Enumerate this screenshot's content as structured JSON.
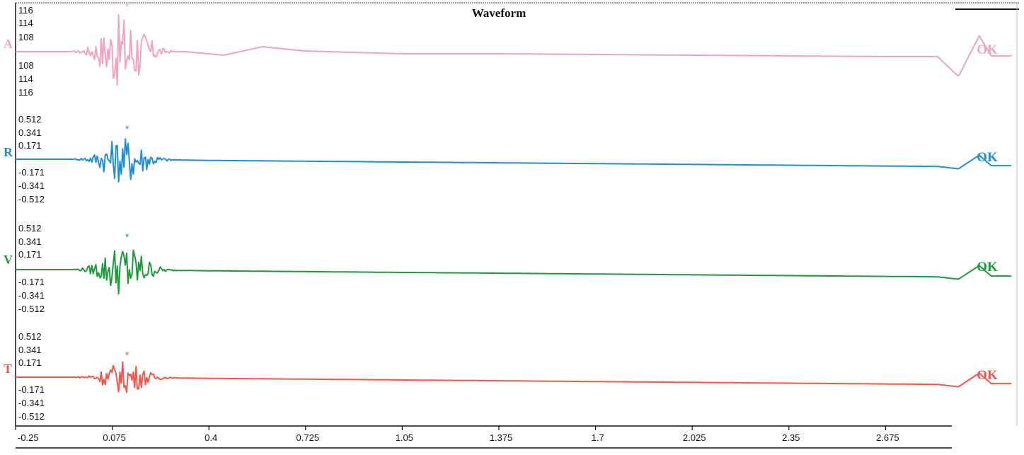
{
  "chart_data": {
    "type": "line",
    "title": "Waveform",
    "x_ticks": [
      "-0.25",
      "0.075",
      "0.4",
      "0.725",
      "1.05",
      "1.375",
      "1.7",
      "2.025",
      "2.35",
      "2.675"
    ],
    "xlim": [
      -0.25,
      3.1
    ],
    "grid": false,
    "channels": [
      {
        "label": "A",
        "status": "OK",
        "color": "#f2a2c0",
        "y_tick_labels": [
          "116",
          "114",
          "108",
          "108",
          "114",
          "116"
        ],
        "ylim": [
          -116,
          116
        ],
        "baseline_x": [
          -0.25,
          0.0,
          0.32,
          0.45,
          0.58,
          0.72,
          1.05,
          1.375,
          1.7,
          2.025,
          2.35,
          2.675,
          2.85,
          2.92,
          2.99,
          3.03,
          3.1
        ],
        "baseline_y": [
          0,
          0,
          0,
          -10,
          14,
          2,
          -6,
          -6,
          -8,
          -10,
          -12,
          -14,
          -14,
          -70,
          45,
          -12,
          -12
        ],
        "burst_center": 0.075,
        "burst_amplitude": 110
      },
      {
        "label": "R",
        "status": "OK",
        "color": "#1f8ed3",
        "y_tick_labels": [
          "0.512",
          "0.341",
          "0.171",
          "-0.171",
          "-0.341",
          "-0.512"
        ],
        "ylim": [
          -0.512,
          0.512
        ],
        "baseline_x": [
          -0.25,
          0.0,
          0.2,
          0.4,
          0.725,
          1.05,
          1.375,
          1.7,
          2.025,
          2.35,
          2.675,
          2.85,
          2.92,
          2.99,
          3.03,
          3.1
        ],
        "baseline_y": [
          0,
          0,
          -0.005,
          -0.015,
          -0.025,
          -0.035,
          -0.045,
          -0.055,
          -0.065,
          -0.075,
          -0.085,
          -0.09,
          -0.12,
          0.05,
          -0.08,
          -0.08
        ],
        "burst_center": 0.075,
        "burst_amplitude": 0.3
      },
      {
        "label": "V",
        "status": "OK",
        "color": "#1e9a3c",
        "y_tick_labels": [
          "0.512",
          "0.341",
          "0.171",
          "-0.171",
          "-0.341",
          "-0.512"
        ],
        "ylim": [
          -0.512,
          0.512
        ],
        "baseline_x": [
          -0.25,
          0.0,
          0.2,
          0.4,
          0.725,
          1.05,
          1.375,
          1.7,
          2.025,
          2.35,
          2.675,
          2.85,
          2.92,
          2.99,
          3.03,
          3.1
        ],
        "baseline_y": [
          0,
          0,
          -0.005,
          -0.015,
          -0.025,
          -0.035,
          -0.045,
          -0.055,
          -0.065,
          -0.075,
          -0.085,
          -0.09,
          -0.12,
          0.05,
          -0.08,
          -0.08
        ],
        "burst_center": 0.075,
        "burst_amplitude": 0.33
      },
      {
        "label": "T",
        "status": "OK",
        "color": "#f0564a",
        "y_tick_labels": [
          "0.512",
          "0.341",
          "0.171",
          "-0.171",
          "-0.341",
          "-0.512"
        ],
        "ylim": [
          -0.512,
          0.512
        ],
        "baseline_x": [
          -0.25,
          0.0,
          0.2,
          0.4,
          0.725,
          1.05,
          1.375,
          1.7,
          2.025,
          2.35,
          2.675,
          2.85,
          2.92,
          2.99,
          3.03,
          3.1
        ],
        "baseline_y": [
          0,
          0,
          -0.005,
          -0.015,
          -0.025,
          -0.035,
          -0.045,
          -0.055,
          -0.065,
          -0.075,
          -0.085,
          -0.09,
          -0.12,
          0.05,
          -0.08,
          -0.08
        ],
        "burst_center": 0.075,
        "burst_amplitude": 0.2
      }
    ]
  }
}
